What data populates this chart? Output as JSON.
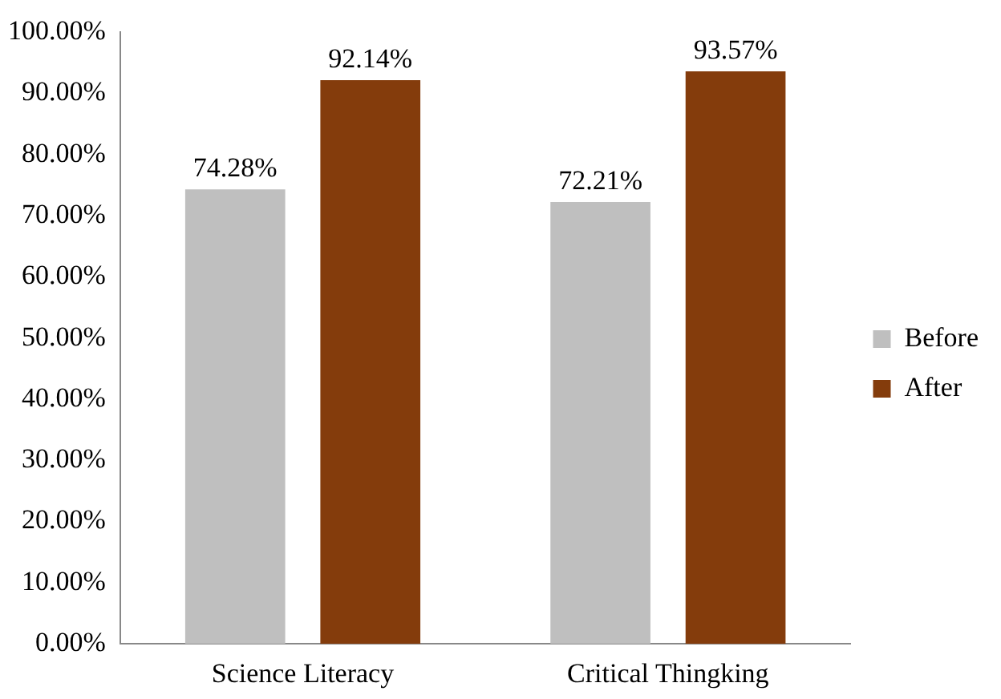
{
  "chart_data": {
    "type": "bar",
    "categories": [
      "Science Literacy",
      "Critical Thingking"
    ],
    "series": [
      {
        "name": "Before",
        "color": "#bfbfbf",
        "values": [
          74.28,
          72.21
        ],
        "value_labels": [
          "74.28%",
          "72.21%"
        ]
      },
      {
        "name": "After",
        "color": "#843c0c",
        "values": [
          92.14,
          93.57
        ],
        "value_labels": [
          "92.14%",
          "93.57%"
        ]
      }
    ],
    "ylim": [
      0,
      100
    ],
    "yticks": [
      {
        "value": 0,
        "label": "0.00%"
      },
      {
        "value": 10,
        "label": "10.00%"
      },
      {
        "value": 20,
        "label": "20.00%"
      },
      {
        "value": 30,
        "label": "30.00%"
      },
      {
        "value": 40,
        "label": "40.00%"
      },
      {
        "value": 50,
        "label": "50.00%"
      },
      {
        "value": 60,
        "label": "60.00%"
      },
      {
        "value": 70,
        "label": "70.00%"
      },
      {
        "value": 80,
        "label": "80.00%"
      },
      {
        "value": 90,
        "label": "90.00%"
      },
      {
        "value": 100,
        "label": "100.00%"
      }
    ],
    "grid": false,
    "legend": "right"
  }
}
